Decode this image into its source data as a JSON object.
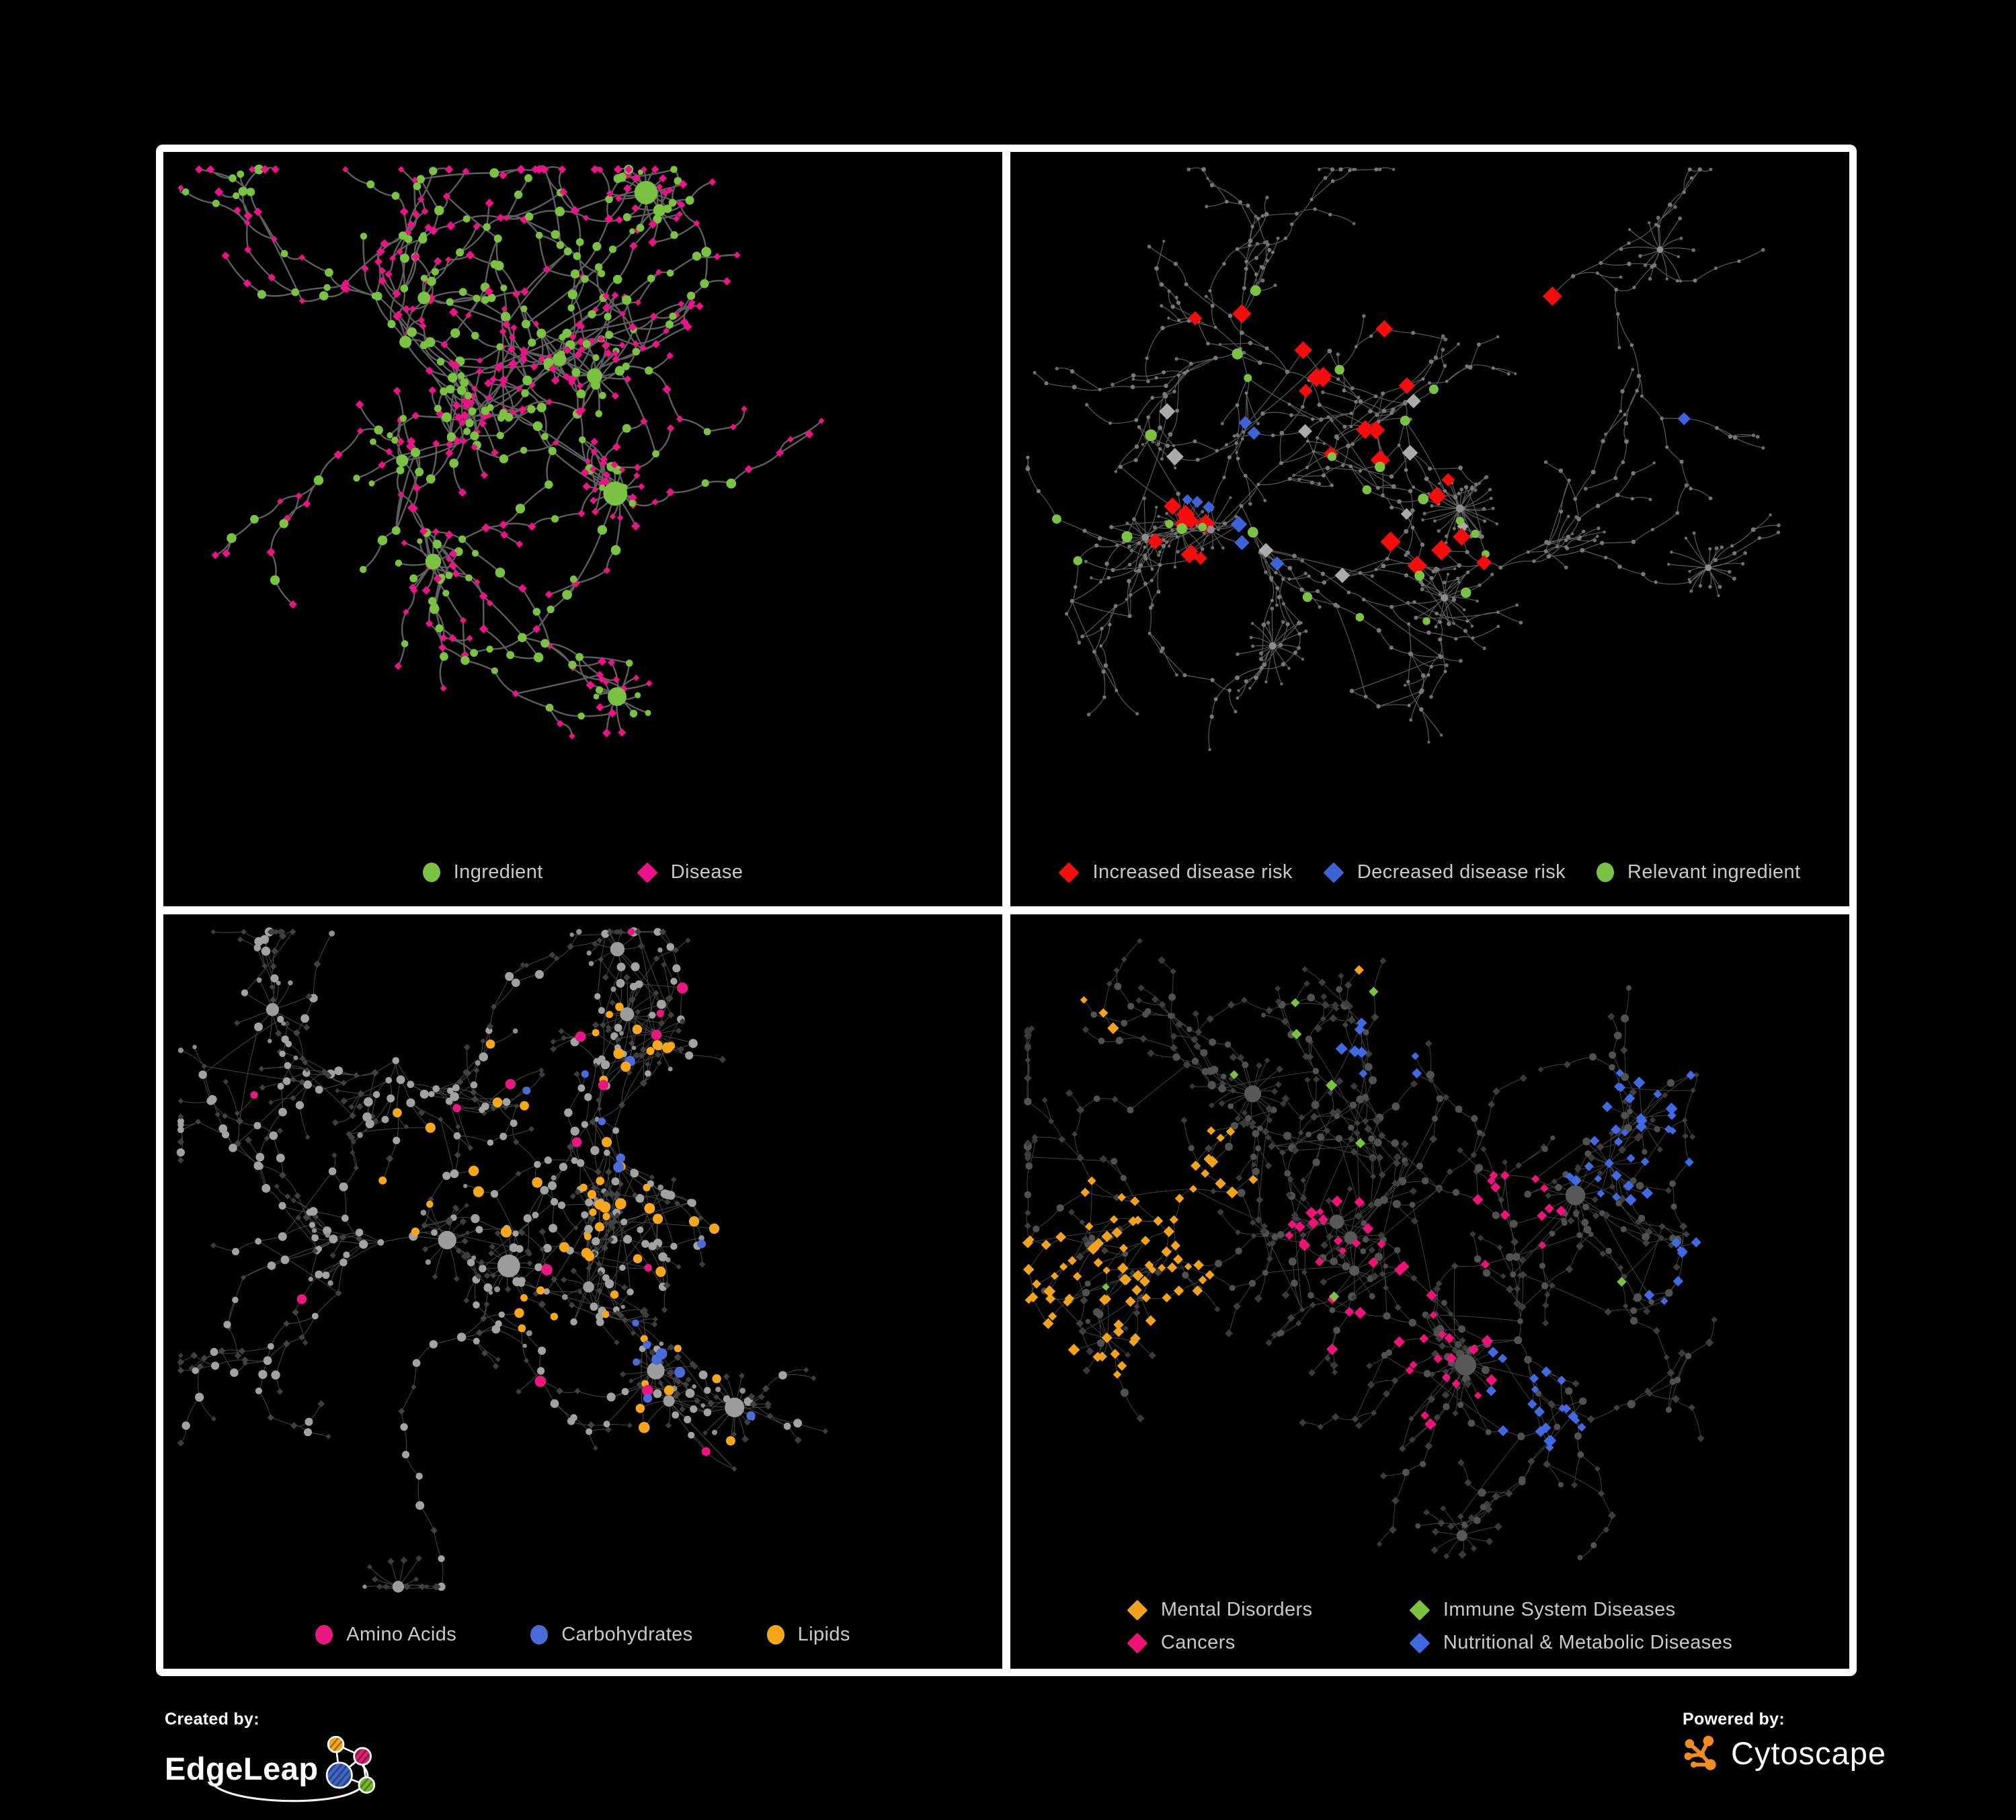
{
  "background": "#000000",
  "panels": [
    {
      "id": "ingredient-disease",
      "legend": [
        {
          "shape": "circle",
          "color": "#7CC242",
          "label": "Ingredient"
        },
        {
          "shape": "diamond",
          "color": "#EC1288",
          "label": "Disease"
        }
      ],
      "net": {
        "seed": 7,
        "nodes": 520,
        "step": 36,
        "bursts": 7,
        "links": 60,
        "curve": 22,
        "hubDeg": 5,
        "bot": 1000,
        "edge": {
          "color": "#6e6e6e",
          "width": 2.4,
          "opacity": 0.85
        },
        "hub": {
          "shape": "circle",
          "color": "#7CC242",
          "size": 8,
          "grow": 0.55,
          "max": 17
        },
        "leaf": [
          {
            "shape": "diamond",
            "color": "#EC1288",
            "size": 5.5,
            "w": 0.8
          },
          {
            "shape": "circle",
            "color": "#7CC242",
            "size": 4.8,
            "w": 0.2
          }
        ],
        "mid": [
          {
            "shape": "circle",
            "color": "#7CC242",
            "size": 6.0,
            "w": 0.55
          },
          {
            "shape": "diamond",
            "color": "#EC1288",
            "size": 5.5,
            "w": 0.45
          }
        ],
        "clusters": [
          [
            0.32,
            0.32
          ],
          [
            0.45,
            0.42
          ],
          [
            0.28,
            0.52
          ],
          [
            0.6,
            0.28
          ],
          [
            0.55,
            0.55
          ],
          [
            0.7,
            0.45
          ],
          [
            0.42,
            0.68
          ],
          [
            0.25,
            0.25
          ],
          [
            0.65,
            0.7
          ],
          [
            0.35,
            0.82
          ],
          [
            0.75,
            0.2
          ],
          [
            0.2,
            0.65
          ]
        ],
        "overlays": []
      }
    },
    {
      "id": "disease-risk",
      "legend": [
        {
          "shape": "diamond",
          "color": "#F50D0D",
          "label": "Increased disease risk"
        },
        {
          "shape": "diamond",
          "color": "#3E63D6",
          "label": "Decreased disease risk"
        },
        {
          "shape": "circle",
          "color": "#7CC242",
          "label": "Relevant ingredient"
        }
      ],
      "net": {
        "seed": 19,
        "nodes": 620,
        "step": 34,
        "bursts": 9,
        "links": 45,
        "curve": 14,
        "hubDeg": 6,
        "bot": 1000,
        "edge": {
          "color": "#646464",
          "width": 1.2,
          "opacity": 0.9
        },
        "hub": {
          "shape": "circle",
          "color": "#8d8d8d",
          "size": 3.4,
          "grow": 0.18,
          "max": 6
        },
        "leaf": [
          {
            "shape": "circle",
            "color": "#6e6e6e",
            "size": 2.4,
            "w": 1
          }
        ],
        "mid": [
          {
            "shape": "circle",
            "color": "#787878",
            "size": 2.8,
            "w": 1
          }
        ],
        "clusters": [
          [
            0.3,
            0.3
          ],
          [
            0.5,
            0.35
          ],
          [
            0.25,
            0.5
          ],
          [
            0.55,
            0.6
          ],
          [
            0.7,
            0.25
          ],
          [
            0.4,
            0.7
          ],
          [
            0.75,
            0.75
          ],
          [
            0.85,
            0.3
          ],
          [
            0.15,
            0.7
          ],
          [
            0.6,
            0.45
          ],
          [
            0.35,
            0.15
          ],
          [
            0.8,
            0.55
          ]
        ],
        "overlays": [
          {
            "shape": "circle",
            "color": "#7CC242",
            "size": 7,
            "count": 26,
            "clusters": [
              [
                0.3,
                0.35,
                0.22
              ],
              [
                0.15,
                0.45,
                0.12
              ],
              [
                0.45,
                0.55,
                0.12
              ],
              [
                0.55,
                0.3,
                0.1
              ]
            ]
          },
          {
            "shape": "diamond",
            "color": "#F50D0D",
            "size": 12,
            "count": 30,
            "clusters": [
              [
                0.33,
                0.33,
                0.2
              ],
              [
                0.45,
                0.5,
                0.16
              ],
              [
                0.25,
                0.45,
                0.12
              ],
              [
                0.58,
                0.6,
                0.1
              ],
              [
                0.73,
                0.78,
                0.07
              ],
              [
                0.62,
                0.2,
                0.05
              ]
            ]
          },
          {
            "shape": "diamond",
            "color": "#ABABAB",
            "size": 10,
            "count": 9,
            "clusters": [
              [
                0.35,
                0.42,
                0.18
              ],
              [
                0.5,
                0.55,
                0.12
              ]
            ]
          },
          {
            "shape": "diamond",
            "color": "#3E63D6",
            "size": 10,
            "count": 9,
            "clusters": [
              [
                0.24,
                0.42,
                0.08
              ],
              [
                0.82,
                0.33,
                0.05
              ],
              [
                0.3,
                0.5,
                0.06
              ]
            ]
          }
        ]
      }
    },
    {
      "id": "nutrient-classes",
      "legend": [
        {
          "shape": "circle",
          "color": "#E81880",
          "label": "Amino Acids"
        },
        {
          "shape": "circle",
          "color": "#4A6BD8",
          "label": "Carbohydrates"
        },
        {
          "shape": "circle",
          "color": "#F7A71B",
          "label": "Lipids"
        }
      ],
      "net": {
        "seed": 23,
        "nodes": 660,
        "step": 33,
        "bursts": 11,
        "links": 80,
        "curve": 12,
        "hubDeg": 6,
        "bot": 1000,
        "edge": {
          "color": "#8a8a8a",
          "width": 1.0,
          "opacity": 0.5
        },
        "hub": {
          "shape": "circle",
          "color": "#9c9c9c",
          "size": 6.5,
          "grow": 0.5,
          "max": 14
        },
        "leaf": [
          {
            "shape": "diamond",
            "color": "#3d3d3d",
            "size": 4.4,
            "w": 0.78
          },
          {
            "shape": "circle",
            "color": "#8f8f8f",
            "size": 3.6,
            "w": 0.22
          }
        ],
        "mid": [
          {
            "shape": "circle",
            "color": "#a2a2a2",
            "size": 5.5,
            "w": 0.6
          },
          {
            "shape": "diamond",
            "color": "#424242",
            "size": 4.6,
            "w": 0.4
          }
        ],
        "clusters": [
          [
            0.3,
            0.25
          ],
          [
            0.5,
            0.3
          ],
          [
            0.25,
            0.45
          ],
          [
            0.55,
            0.55
          ],
          [
            0.35,
            0.65
          ],
          [
            0.6,
            0.75
          ],
          [
            0.75,
            0.35
          ],
          [
            0.15,
            0.3
          ],
          [
            0.45,
            0.85
          ],
          [
            0.8,
            0.6
          ],
          [
            0.65,
            0.15
          ],
          [
            0.2,
            0.8
          ]
        ],
        "overlays": [
          {
            "shape": "circle",
            "color": "#F7A71B",
            "size": 6.5,
            "count": 60,
            "clusters": [
              [
                0.52,
                0.25,
                0.13
              ],
              [
                0.37,
                0.1,
                0.09
              ],
              [
                0.3,
                0.33,
                0.1
              ],
              [
                0.5,
                0.5,
                0.07
              ],
              [
                0.65,
                0.45,
                0.25
              ]
            ]
          },
          {
            "shape": "circle",
            "color": "#4A6BD8",
            "size": 6.5,
            "count": 15,
            "clusters": [
              [
                0.5,
                0.26,
                0.09
              ],
              [
                0.2,
                0.12,
                0.05
              ],
              [
                0.75,
                0.55,
                0.2
              ]
            ]
          },
          {
            "shape": "circle",
            "color": "#E81880",
            "size": 6.5,
            "count": 17,
            "clusters": [
              [
                0.2,
                0.55,
                0.25
              ],
              [
                0.55,
                0.7,
                0.25
              ],
              [
                0.88,
                0.33,
                0.12
              ],
              [
                0.4,
                0.3,
                0.5
              ]
            ]
          }
        ]
      }
    },
    {
      "id": "disease-categories",
      "legend": [
        {
          "shape": "diamond",
          "color": "#F2A31D",
          "label": "Mental Disorders"
        },
        {
          "shape": "diamond",
          "color": "#7CC242",
          "label": "Immune System Diseases"
        },
        {
          "shape": "diamond",
          "color": "#ED1377",
          "label": "Cancers"
        },
        {
          "shape": "diamond",
          "color": "#4169E1",
          "label": "Nutritional & Metabolic Diseases"
        }
      ],
      "net": {
        "seed": 5,
        "nodes": 760,
        "step": 31,
        "bursts": 10,
        "links": 90,
        "curve": 10,
        "hubDeg": 6,
        "bot": 975,
        "edge": {
          "color": "#8f8f8f",
          "width": 1.0,
          "opacity": 0.45
        },
        "hub": {
          "shape": "circle",
          "color": "#585858",
          "size": 6,
          "grow": 0.5,
          "max": 13
        },
        "leaf": [
          {
            "shape": "diamond",
            "color": "#3a3a3a",
            "size": 5.0,
            "w": 0.9
          },
          {
            "shape": "circle",
            "color": "#4c4c4c",
            "size": 4.0,
            "w": 0.1
          }
        ],
        "mid": [
          {
            "shape": "diamond",
            "color": "#3f3f3f",
            "size": 5.0,
            "w": 0.5
          },
          {
            "shape": "circle",
            "color": "#515151",
            "size": 5.0,
            "w": 0.5
          }
        ],
        "clusters": [
          [
            0.15,
            0.45
          ],
          [
            0.45,
            0.5
          ],
          [
            0.3,
            0.3
          ],
          [
            0.6,
            0.6
          ],
          [
            0.72,
            0.3
          ],
          [
            0.85,
            0.18
          ],
          [
            0.5,
            0.12
          ],
          [
            0.3,
            0.75
          ],
          [
            0.85,
            0.5
          ],
          [
            0.55,
            0.85
          ],
          [
            0.12,
            0.7
          ],
          [
            0.92,
            0.3
          ]
        ],
        "overlays": [
          {
            "shape": "diamond",
            "color": "#F2A31D",
            "size": 7,
            "count": 90,
            "clusters": [
              [
                0.13,
                0.45,
                0.13
              ],
              [
                0.2,
                0.35,
                0.09
              ],
              [
                0.08,
                0.56,
                0.07
              ],
              [
                0.17,
                0.55,
                0.07
              ],
              [
                0.1,
                0.12,
                0.04
              ],
              [
                0.45,
                0.08,
                0.04
              ]
            ]
          },
          {
            "shape": "diamond",
            "color": "#ED1377",
            "size": 7,
            "count": 55,
            "clusters": [
              [
                0.46,
                0.52,
                0.12
              ],
              [
                0.54,
                0.6,
                0.09
              ],
              [
                0.38,
                0.44,
                0.07
              ],
              [
                0.92,
                0.27,
                0.06
              ],
              [
                0.26,
                0.9,
                0.04
              ],
              [
                0.6,
                0.4,
                0.06
              ]
            ]
          },
          {
            "shape": "diamond",
            "color": "#4169E1",
            "size": 7,
            "count": 70,
            "clusters": [
              [
                0.63,
                0.63,
                0.08
              ],
              [
                0.73,
                0.3,
                0.09
              ],
              [
                0.86,
                0.17,
                0.07
              ],
              [
                0.56,
                0.08,
                0.08
              ],
              [
                0.3,
                0.72,
                0.06
              ],
              [
                0.45,
                0.18,
                0.06
              ],
              [
                0.84,
                0.5,
                0.08
              ],
              [
                0.12,
                0.75,
                0.05
              ],
              [
                0.5,
                0.93,
                0.05
              ]
            ]
          },
          {
            "shape": "diamond",
            "color": "#7CC242",
            "size": 7,
            "count": 9,
            "clusters": [
              [
                0.5,
                0.45,
                0.4
              ]
            ]
          }
        ]
      }
    }
  ],
  "footer": {
    "created_by": "Created by:",
    "edgeleap": "EdgeLeap",
    "powered_by": "Powered by:",
    "cytoscape": "Cytoscape",
    "logo": {
      "orange": "#F5A623",
      "magenta": "#D6246E",
      "blue": "#3F64C4",
      "green": "#77B82A",
      "cytoscape_orange": "#F08C21"
    }
  }
}
